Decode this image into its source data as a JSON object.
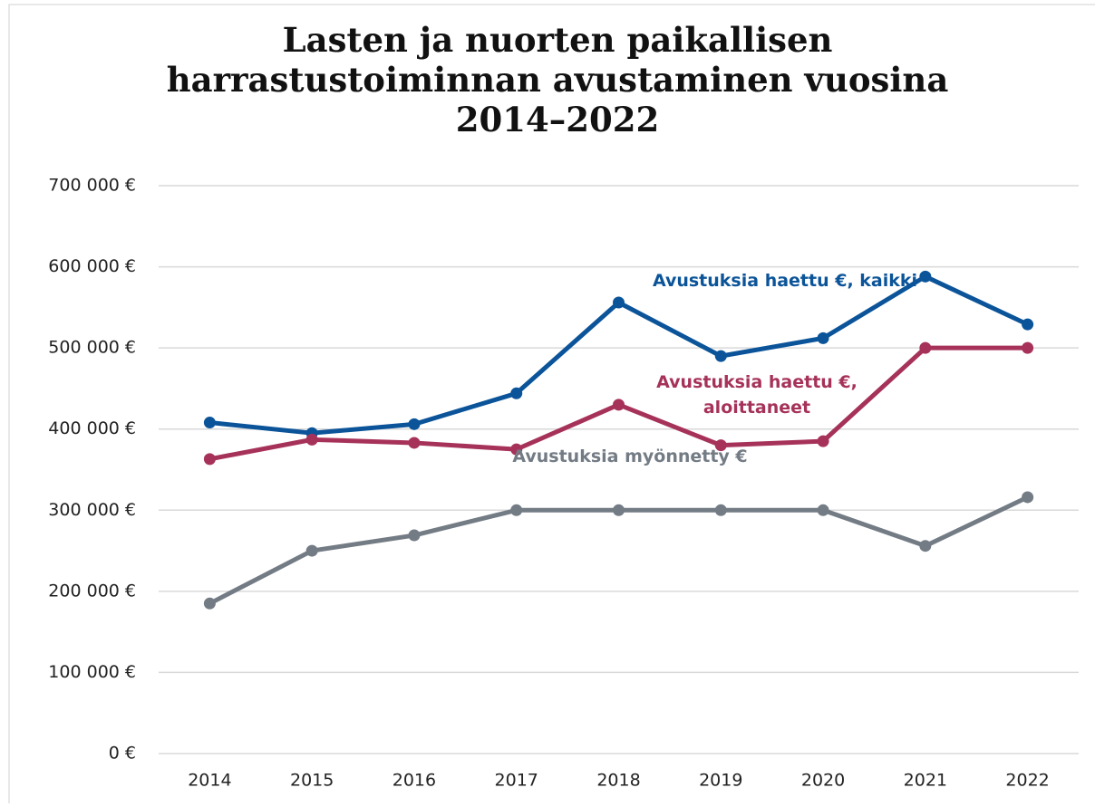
{
  "chart_data": {
    "type": "line",
    "title": "Lasten ja nuorten paikallisen harrastustoiminnan avustaminen vuosina 2014–2022",
    "categories": [
      "2014",
      "2015",
      "2016",
      "2017",
      "2018",
      "2019",
      "2020",
      "2021",
      "2022"
    ],
    "series": [
      {
        "name": "Avustuksia haettu €, kaikki",
        "color": "#0b5499",
        "values": [
          408000,
          395000,
          406000,
          444000,
          556000,
          490000,
          512000,
          588000,
          529000
        ]
      },
      {
        "name": "Avustuksia haettu €, aloittaneet",
        "color": "#a6325a",
        "values": [
          363000,
          387000,
          383000,
          375000,
          430000,
          380000,
          385000,
          500000,
          500000
        ]
      },
      {
        "name": "Avustuksia myönnetty €",
        "color": "#737b84",
        "values": [
          185000,
          250000,
          269000,
          300000,
          300000,
          300000,
          300000,
          256000,
          316000
        ]
      }
    ],
    "ylim": [
      0,
      700000
    ],
    "yticks": [
      {
        "value": 0,
        "label": "0 €"
      },
      {
        "value": 100000,
        "label": "100 000 €"
      },
      {
        "value": 200000,
        "label": "200 000 €"
      },
      {
        "value": 300000,
        "label": "300 000 €"
      },
      {
        "value": 400000,
        "label": "400 000 €"
      },
      {
        "value": 500000,
        "label": "500 000 €"
      },
      {
        "value": 600000,
        "label": "600 000 €"
      },
      {
        "value": 700000,
        "label": "700 000 €"
      }
    ],
    "grid": true
  }
}
